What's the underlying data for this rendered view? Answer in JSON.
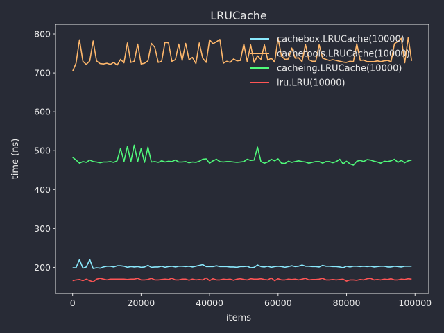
{
  "chart_data": {
    "type": "line",
    "title": "LRUCache",
    "xlabel": "items",
    "ylabel": "time (ns)",
    "xlim": [
      -5000,
      104000
    ],
    "ylim": [
      133,
      825
    ],
    "xticks": [
      0,
      20000,
      40000,
      60000,
      80000,
      100000
    ],
    "yticks": [
      200,
      300,
      400,
      500,
      600,
      700,
      800
    ],
    "grid": false,
    "legend": "top-right",
    "x": [
      0,
      1000,
      2000,
      3000,
      4000,
      5000,
      6000,
      7000,
      8000,
      9000,
      10000,
      11000,
      12000,
      13000,
      14000,
      15000,
      16000,
      17000,
      18000,
      19000,
      20000,
      21000,
      22000,
      23000,
      24000,
      25000,
      26000,
      27000,
      28000,
      29000,
      30000,
      31000,
      32000,
      33000,
      34000,
      35000,
      36000,
      37000,
      38000,
      39000,
      40000,
      41000,
      42000,
      43000,
      44000,
      45000,
      46000,
      47000,
      48000,
      49000,
      50000,
      51000,
      52000,
      53000,
      54000,
      55000,
      56000,
      57000,
      58000,
      59000,
      60000,
      61000,
      62000,
      63000,
      64000,
      65000,
      66000,
      67000,
      68000,
      69000,
      70000,
      71000,
      72000,
      73000,
      74000,
      75000,
      76000,
      77000,
      78000,
      79000,
      80000,
      81000,
      82000,
      83000,
      84000,
      85000,
      86000,
      87000,
      88000,
      89000,
      90000,
      91000,
      92000,
      93000,
      94000,
      95000,
      96000,
      97000,
      98000,
      99000
    ],
    "series": [
      {
        "name": "cachebox.LRUCache(10000)",
        "color": "#8be9fd",
        "values": [
          199,
          199,
          220,
          198,
          201,
          220,
          197,
          199,
          198,
          201,
          203,
          203,
          201,
          204,
          204,
          203,
          200,
          202,
          201,
          202,
          200,
          201,
          205,
          200,
          201,
          201,
          203,
          200,
          202,
          203,
          201,
          203,
          203,
          202,
          203,
          201,
          203,
          205,
          207,
          202,
          202,
          202,
          204,
          202,
          202,
          202,
          201,
          201,
          200,
          202,
          202,
          203,
          199,
          200,
          206,
          202,
          201,
          203,
          200,
          202,
          203,
          202,
          200,
          202,
          204,
          202,
          203,
          206,
          203,
          203,
          202,
          202,
          201,
          205,
          203,
          203,
          202,
          202,
          201,
          199,
          203,
          201,
          203,
          203,
          202,
          203,
          202,
          203,
          201,
          202,
          203,
          203,
          201,
          201,
          203,
          202,
          201,
          203,
          203,
          203
        ]
      },
      {
        "name": "cachetools.LRUCache(10000)",
        "color": "#ffb86c",
        "values": [
          704,
          725,
          785,
          730,
          722,
          731,
          782,
          731,
          724,
          723,
          725,
          722,
          727,
          720,
          735,
          726,
          777,
          727,
          730,
          774,
          723,
          725,
          731,
          776,
          766,
          727,
          730,
          779,
          777,
          730,
          734,
          774,
          732,
          776,
          734,
          740,
          724,
          777,
          738,
          727,
          785,
          775,
          780,
          786,
          725,
          730,
          727,
          736,
          731,
          732,
          774,
          729,
          772,
          727,
          744,
          735,
          772,
          733,
          738,
          728,
          789,
          743,
          735,
          736,
          764,
          738,
          739,
          729,
          773,
          734,
          730,
          730,
          772,
          738,
          735,
          732,
          734,
          732,
          730,
          728,
          727,
          730,
          729,
          775,
          732,
          733,
          729,
          729,
          729,
          731,
          729,
          731,
          732,
          729,
          775,
          781,
          789,
          726,
          791,
          731
        ]
      },
      {
        "name": "cacheing.LRUCache(10000)",
        "color": "#50fa7b",
        "values": [
          483,
          476,
          468,
          472,
          470,
          476,
          472,
          471,
          469,
          471,
          471,
          472,
          470,
          474,
          506,
          472,
          511,
          472,
          514,
          472,
          505,
          470,
          509,
          471,
          472,
          470,
          474,
          471,
          473,
          472,
          476,
          471,
          471,
          472,
          469,
          471,
          470,
          473,
          478,
          479,
          468,
          474,
          478,
          472,
          471,
          472,
          472,
          471,
          470,
          471,
          472,
          478,
          475,
          476,
          509,
          472,
          468,
          471,
          478,
          474,
          479,
          468,
          467,
          473,
          470,
          472,
          474,
          472,
          471,
          468,
          470,
          472,
          472,
          468,
          472,
          472,
          469,
          472,
          478,
          466,
          473,
          466,
          463,
          473,
          475,
          472,
          477,
          476,
          473,
          471,
          468,
          473,
          472,
          474,
          478,
          470,
          475,
          469,
          474,
          476
        ]
      },
      {
        "name": "lru.LRU(10000)",
        "color": "#ff5555",
        "values": [
          166,
          168,
          169,
          166,
          170,
          166,
          163,
          170,
          172,
          170,
          168,
          170,
          170,
          170,
          170,
          170,
          169,
          170,
          170,
          172,
          168,
          168,
          169,
          172,
          168,
          168,
          169,
          170,
          169,
          172,
          168,
          168,
          170,
          170,
          167,
          170,
          168,
          169,
          168,
          173,
          166,
          171,
          168,
          168,
          170,
          169,
          170,
          167,
          170,
          171,
          169,
          168,
          171,
          170,
          170,
          171,
          169,
          168,
          173,
          166,
          171,
          168,
          168,
          170,
          169,
          170,
          168,
          170,
          172,
          168,
          169,
          169,
          170,
          172,
          168,
          168,
          169,
          168,
          169,
          170,
          165,
          168,
          168,
          167,
          169,
          168,
          171,
          172,
          168,
          169,
          168,
          170,
          169,
          171,
          168,
          168,
          170,
          169,
          171,
          170
        ]
      }
    ]
  }
}
